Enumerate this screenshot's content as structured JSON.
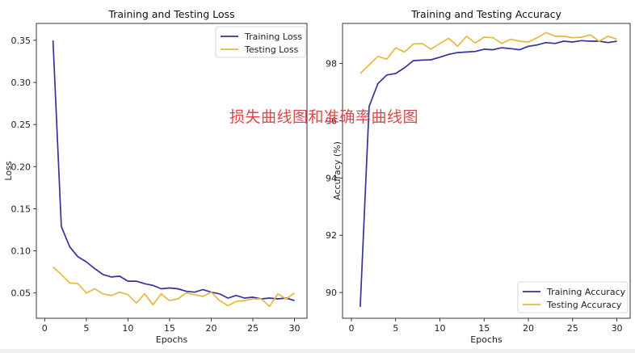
{
  "overlay_caption": "损失曲线图和准确率曲线图",
  "colors": {
    "training": "#33339a",
    "testing": "#e6b83c",
    "caption": "#e0464b"
  },
  "chart_data": [
    {
      "type": "line",
      "title": "Training and Testing Loss",
      "xlabel": "Epochs",
      "ylabel": "Loss",
      "xlim": [
        -1,
        31.5
      ],
      "ylim": [
        0.02,
        0.37
      ],
      "xticks": [
        0,
        5,
        10,
        15,
        20,
        25,
        30
      ],
      "yticks": [
        0.05,
        0.1,
        0.15,
        0.2,
        0.25,
        0.3,
        0.35
      ],
      "ytick_labels": [
        "0.05",
        "0.10",
        "0.15",
        "0.20",
        "0.25",
        "0.30",
        "0.35"
      ],
      "legend": "top-right",
      "grid": false,
      "x": [
        1,
        2,
        3,
        4,
        5,
        6,
        7,
        8,
        9,
        10,
        11,
        12,
        13,
        14,
        15,
        16,
        17,
        18,
        19,
        20,
        21,
        22,
        23,
        24,
        25,
        26,
        27,
        28,
        29,
        30
      ],
      "series": [
        {
          "name": "Training Loss",
          "color": "#33339a",
          "values": [
            0.35,
            0.129,
            0.105,
            0.093,
            0.087,
            0.079,
            0.072,
            0.069,
            0.07,
            0.064,
            0.064,
            0.061,
            0.059,
            0.055,
            0.056,
            0.055,
            0.052,
            0.051,
            0.054,
            0.051,
            0.049,
            0.044,
            0.047,
            0.044,
            0.045,
            0.043,
            0.044,
            0.043,
            0.044,
            0.041
          ]
        },
        {
          "name": "Testing Loss",
          "color": "#e6b83c",
          "values": [
            0.081,
            0.072,
            0.062,
            0.061,
            0.05,
            0.055,
            0.049,
            0.047,
            0.051,
            0.048,
            0.038,
            0.049,
            0.036,
            0.049,
            0.041,
            0.043,
            0.05,
            0.048,
            0.046,
            0.051,
            0.041,
            0.035,
            0.04,
            0.041,
            0.043,
            0.043,
            0.034,
            0.049,
            0.043,
            0.05
          ]
        }
      ]
    },
    {
      "type": "line",
      "title": "Training and Testing Accuracy",
      "xlabel": "Epochs",
      "ylabel": "Accuracy (%)",
      "xlim": [
        -1,
        31.5
      ],
      "ylim": [
        89.1,
        99.4
      ],
      "xticks": [
        0,
        5,
        10,
        15,
        20,
        25,
        30
      ],
      "yticks": [
        90,
        92,
        94,
        96,
        98
      ],
      "ytick_labels": [
        "90",
        "92",
        "94",
        "96",
        "98"
      ],
      "legend": "bottom-right",
      "grid": false,
      "x": [
        1,
        2,
        3,
        4,
        5,
        6,
        7,
        8,
        9,
        10,
        11,
        12,
        13,
        14,
        15,
        16,
        17,
        18,
        19,
        20,
        21,
        22,
        23,
        24,
        25,
        26,
        27,
        28,
        29,
        30
      ],
      "series": [
        {
          "name": "Training Accuracy",
          "color": "#33339a",
          "values": [
            89.5,
            96.5,
            97.3,
            97.6,
            97.65,
            97.85,
            98.1,
            98.12,
            98.13,
            98.22,
            98.32,
            98.38,
            98.4,
            98.42,
            98.5,
            98.48,
            98.55,
            98.52,
            98.48,
            98.6,
            98.65,
            98.73,
            98.7,
            98.78,
            98.75,
            98.8,
            98.78,
            98.78,
            98.73,
            98.78
          ]
        },
        {
          "name": "Testing Accuracy",
          "color": "#e6b83c",
          "values": [
            97.65,
            97.95,
            98.25,
            98.15,
            98.55,
            98.4,
            98.68,
            98.7,
            98.5,
            98.7,
            98.88,
            98.6,
            98.95,
            98.72,
            98.92,
            98.9,
            98.7,
            98.85,
            98.78,
            98.75,
            98.9,
            99.08,
            98.95,
            98.95,
            98.9,
            98.92,
            99.0,
            98.78,
            98.95,
            98.85
          ]
        }
      ]
    }
  ]
}
